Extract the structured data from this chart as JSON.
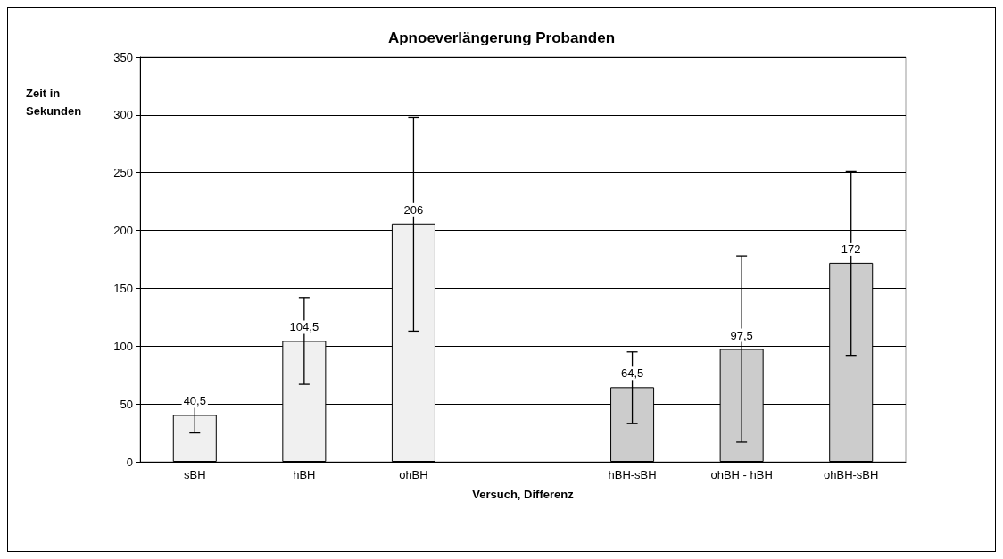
{
  "chart_data": {
    "type": "bar",
    "title": "Apnoeverlängerung Probanden",
    "xlabel": "Versuch, Differenz",
    "ylabel": "Zeit in Sekunden",
    "categories": [
      "sBH",
      "hBH",
      "ohBH",
      null,
      "hBH-sBH",
      "ohBH - hBH",
      "ohBH-sBH"
    ],
    "values": [
      40.5,
      104.5,
      206,
      null,
      64.5,
      97.5,
      172
    ],
    "colors": [
      "#f0f0f0",
      "#f0f0f0",
      "#f0f0f0",
      null,
      "#cccccc",
      "#cccccc",
      "#cccccc"
    ],
    "errors": [
      [
        25,
        56
      ],
      [
        67,
        142
      ],
      [
        113,
        298
      ],
      null,
      [
        33,
        95
      ],
      [
        17,
        178
      ],
      [
        92,
        251
      ]
    ],
    "ylim": [
      0,
      350
    ],
    "yticks": [
      0,
      50,
      100,
      150,
      200,
      250,
      300,
      350
    ],
    "value_labels": [
      "40,5",
      "104,5",
      "206",
      null,
      "64,5",
      "97,5",
      "172"
    ],
    "grid": "y"
  }
}
